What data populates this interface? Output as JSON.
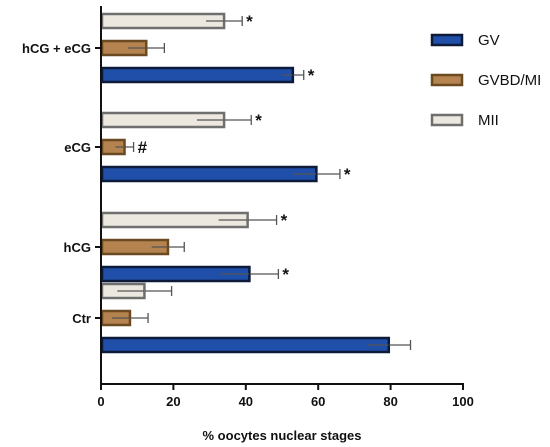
{
  "chart_data": {
    "type": "bar",
    "orientation": "horizontal",
    "categories": [
      "Ctr",
      "hCG",
      "eCG",
      "hCG + eCG"
    ],
    "series": [
      {
        "name": "GV",
        "fill": "#1f4fa8",
        "stroke": "#0d1a3a",
        "values": [
          79.5,
          41,
          59.5,
          53
        ],
        "errors": [
          6,
          8,
          6.5,
          3
        ],
        "annotations": [
          "",
          "*",
          "*",
          "*"
        ]
      },
      {
        "name": "GVBD/MI",
        "fill": "#b5834f",
        "stroke": "#6b4a22",
        "values": [
          8,
          18.5,
          6.5,
          12.5
        ],
        "errors": [
          5,
          4.5,
          2.5,
          5
        ],
        "annotations": [
          "",
          "",
          "#",
          ""
        ]
      },
      {
        "name": "MII",
        "fill": "#ece8df",
        "stroke": "#6f6f6f",
        "values": [
          12,
          40.5,
          34,
          34
        ],
        "errors": [
          7.5,
          8,
          7.5,
          5
        ],
        "annotations": [
          "",
          "*",
          "*",
          "*"
        ]
      }
    ],
    "xlabel": "% oocytes nuclear stages",
    "xlim": [
      0,
      100
    ],
    "xticks": [
      "0",
      "20",
      "40",
      "60",
      "80",
      "100"
    ],
    "legend_position": "top-right",
    "grid": false
  }
}
